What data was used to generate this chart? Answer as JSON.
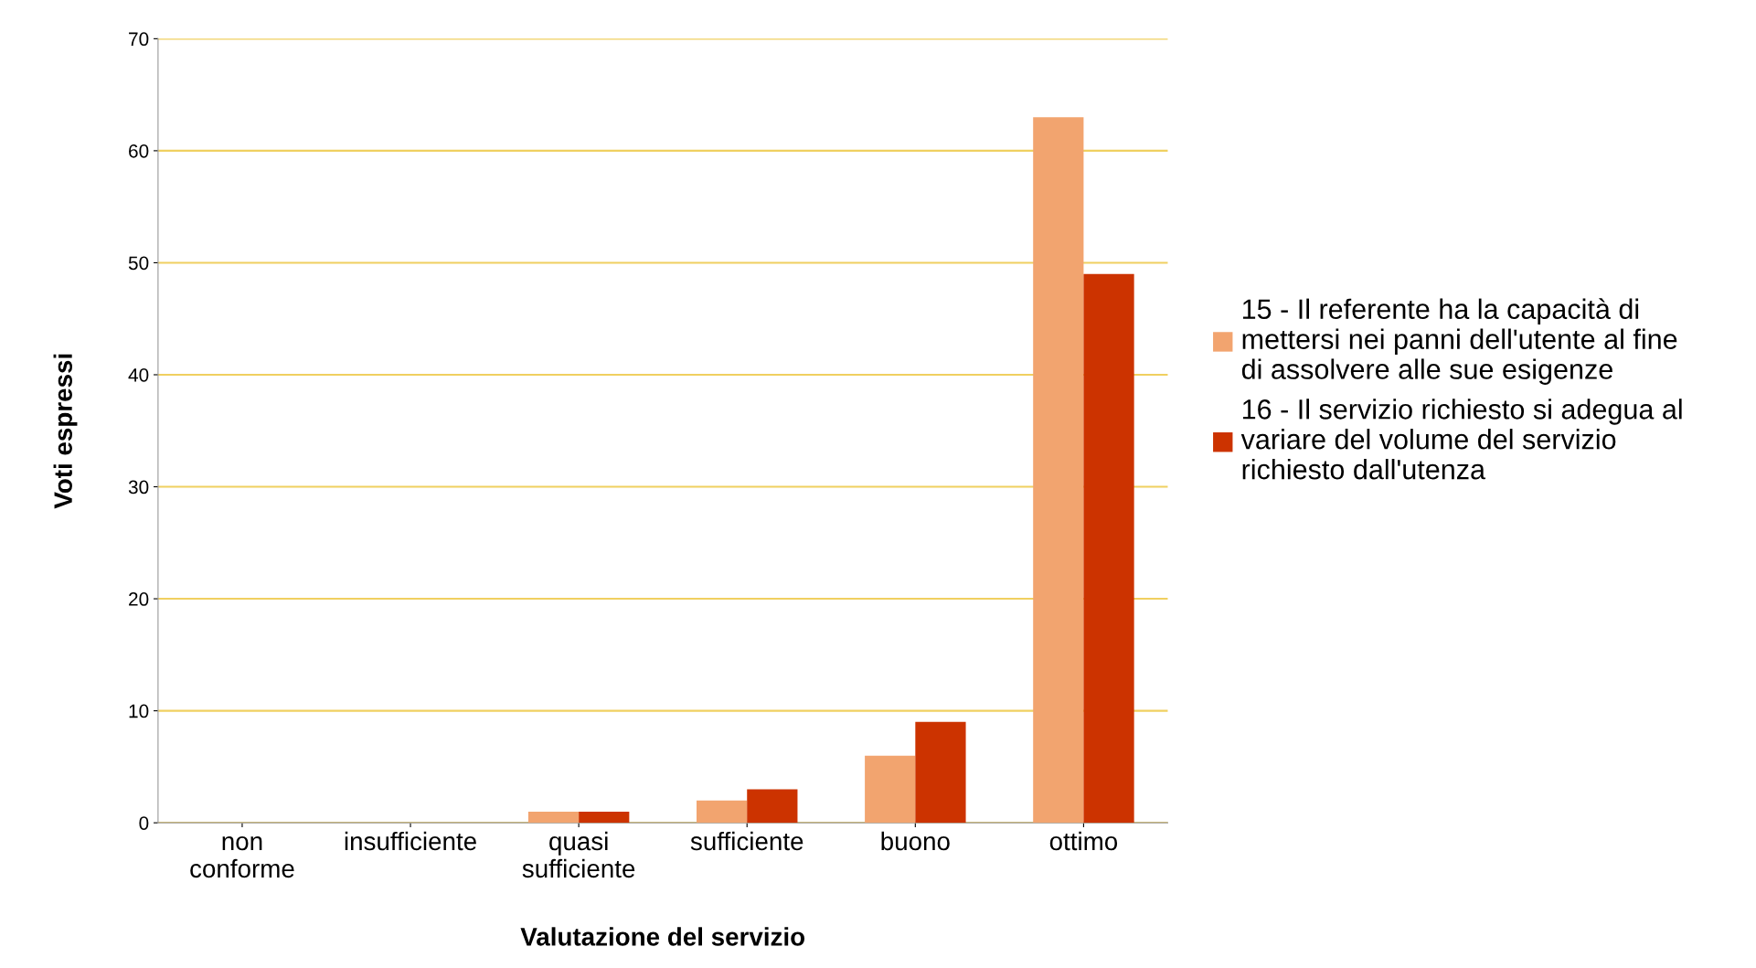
{
  "chart_data": {
    "type": "bar",
    "xlabel": "Valutazione del servizio",
    "ylabel": "Voti espressi",
    "categories": [
      "non\nconforme",
      "insufficiente",
      "quasi\nsufficiente",
      "sufficiente",
      "buono",
      "ottimo"
    ],
    "series": [
      {
        "name": "15 - Il referente ha la capacità di mettersi nei panni dell'utente al fine di assolvere alle sue esigenze",
        "color": "#f2a46f",
        "values": [
          0,
          0,
          1,
          2,
          6,
          63
        ]
      },
      {
        "name": "16 - Il servizio richiesto si adegua al variare del volume del servizio richiesto dall'utenza",
        "color": "#cc3300",
        "values": [
          0,
          0,
          1,
          3,
          9,
          49
        ]
      }
    ],
    "ylim": [
      0,
      70
    ],
    "yticks": [
      0,
      10,
      20,
      30,
      40,
      50,
      60,
      70
    ],
    "grid": "y",
    "legend": "right"
  }
}
